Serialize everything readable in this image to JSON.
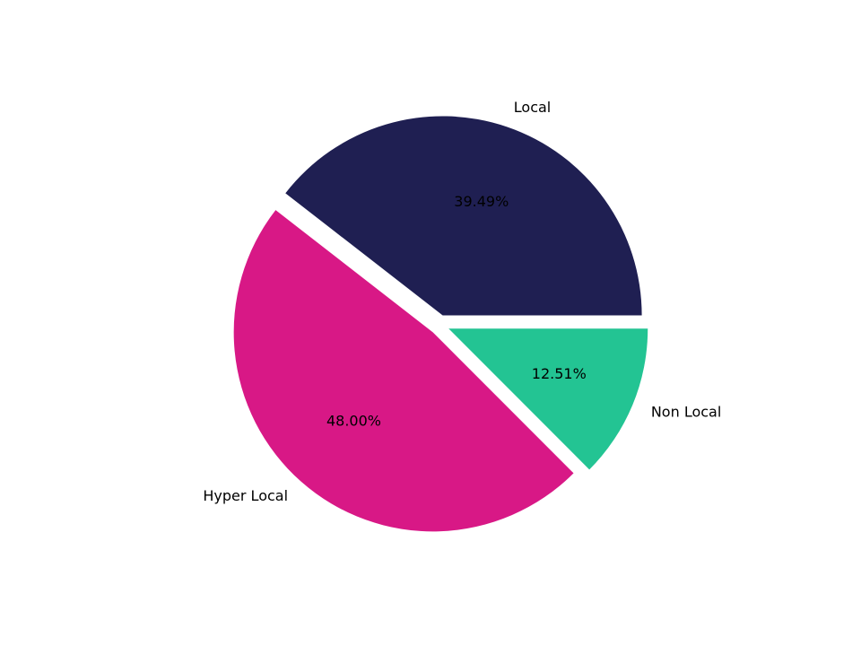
{
  "chart_data": {
    "type": "pie",
    "title": "",
    "categories": [
      "Local",
      "Hyper Local",
      "Non Local"
    ],
    "values": [
      39.49,
      48.0,
      12.51
    ],
    "value_labels": [
      "39.49%",
      "48.00%",
      "12.51%"
    ],
    "colors": [
      "#1f1f52",
      "#d81886",
      "#23c493"
    ],
    "explode": [
      0.05,
      0.05,
      0.05
    ],
    "start_angle_deg": 0,
    "direction": "counterclockwise",
    "legend": "none"
  }
}
